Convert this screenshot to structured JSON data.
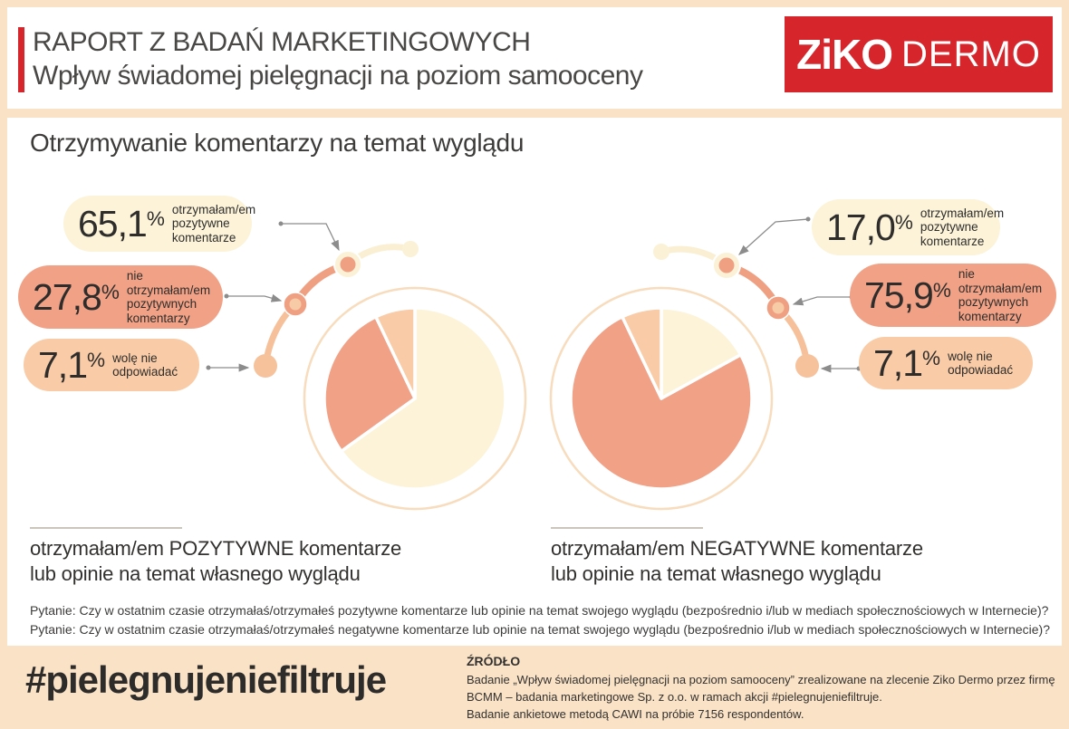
{
  "palette": {
    "background": "#FAE2C6",
    "card": "#FFFFFF",
    "red": "#D6262C",
    "cream": "#FCF3D8",
    "salmon": "#F1A185",
    "peach": "#F9CBA6",
    "ring": "#F7DCBD",
    "text_dark": "#3C3B3A",
    "arrow_gray": "#8C8C8C"
  },
  "header": {
    "title_line1": "RAPORT Z BADAŃ MARKETINGOWYCH",
    "title_line2": "Wpływ świadomej pielęgnacji na poziom samooceny",
    "logo_brand": "ZiKO",
    "logo_sub": "DERMO"
  },
  "main": {
    "section_title": "Otrzymywanie komentarzy na temat wyglądu",
    "percent_symbol": "%"
  },
  "chart_data": [
    {
      "type": "pie",
      "caption_line1": "otrzymałam/em POZYTYWNE komentarze",
      "caption_line2": "lub opinie na temat własnego wyglądu",
      "legend_position": "left-callouts",
      "slices": [
        {
          "label": "otrzymałam/em pozytywne komentarze",
          "value": 65.1,
          "display": "65,1",
          "color_key": "cream"
        },
        {
          "label": "nie otrzymałam/em pozytywnych komentarzy",
          "value": 27.8,
          "display": "27,8",
          "color_key": "salmon"
        },
        {
          "label": "wolę nie odpowiadać",
          "value": 7.1,
          "display": "7,1",
          "color_key": "peach"
        }
      ]
    },
    {
      "type": "pie",
      "caption_line1": "otrzymałam/em NEGATYWNE komentarze",
      "caption_line2": "lub opinie na temat własnego wyglądu",
      "legend_position": "right-callouts",
      "slices": [
        {
          "label": "otrzymałam/em pozytywne komentarze",
          "value": 17.0,
          "display": "17,0",
          "color_key": "cream"
        },
        {
          "label": "nie otrzymałam/em pozytywnych komentarzy",
          "value": 75.9,
          "display": "75,9",
          "color_key": "salmon"
        },
        {
          "label": "wolę nie odpowiadać",
          "value": 7.1,
          "display": "7,1",
          "color_key": "peach"
        }
      ]
    }
  ],
  "footnotes": [
    "Pytanie: Czy w ostatnim czasie otrzymałaś/otrzymałeś pozytywne komentarze lub opinie na temat swojego wyglądu (bezpośrednio i/lub w mediach społecznościowych w Internecie)?",
    "Pytanie: Czy w ostatnim czasie otrzymałaś/otrzymałeś negatywne komentarze lub opinie na temat swojego wyglądu (bezpośrednio i/lub w mediach społecznościowych w Internecie)?"
  ],
  "footer": {
    "hashtag": "#pielegnujeniefiltruje",
    "source_title": "ŹRÓDŁO",
    "source_lines": [
      "Badanie „Wpływ świadomej pielęgnacji na poziom samooceny” zrealizowane na zlecenie Ziko Dermo przez firmę",
      "BCMM – badania marketingowe Sp. z o.o. w ramach akcji #pielegnujeniefiltruje.",
      "Badanie ankietowe metodą CAWI na próbie 7156 respondentów."
    ]
  }
}
